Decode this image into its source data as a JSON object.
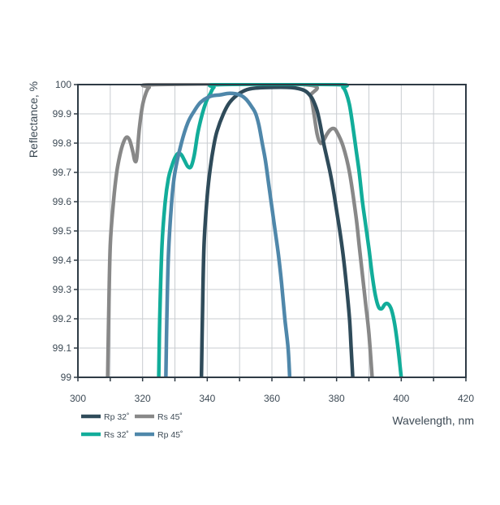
{
  "chart_data": {
    "type": "line",
    "xlabel": "Wavelength, nm",
    "ylabel": "Reflectance, %",
    "xlim": [
      300,
      420
    ],
    "ylim": [
      99,
      100
    ],
    "x_ticks": [
      "300",
      "320",
      "340",
      "360",
      "380",
      "400",
      "420"
    ],
    "y_ticks": [
      "99",
      "99.1",
      "99.2",
      "99.3",
      "99.4",
      "99.5",
      "99.6",
      "99.7",
      "99.8",
      "99.9",
      "100"
    ],
    "grid": true,
    "legend_position": "bottom-left",
    "series": [
      {
        "name": "Rs 45˚",
        "color": "#888888",
        "points": [
          [
            309.2,
            99
          ],
          [
            309.5,
            99.2
          ],
          [
            310,
            99.45
          ],
          [
            311,
            99.6
          ],
          [
            312,
            99.7
          ],
          [
            313,
            99.76
          ],
          [
            314,
            99.8
          ],
          [
            315,
            99.82
          ],
          [
            316,
            99.81
          ],
          [
            317,
            99.77
          ],
          [
            317.6,
            99.74
          ],
          [
            318.2,
            99.75
          ],
          [
            319,
            99.85
          ],
          [
            320,
            99.93
          ],
          [
            321,
            99.97
          ],
          [
            322,
            99.99
          ],
          [
            324,
            100
          ],
          [
            370,
            100
          ],
          [
            372,
            99.96
          ],
          [
            373,
            99.9
          ],
          [
            374,
            99.83
          ],
          [
            375,
            99.8
          ],
          [
            376,
            99.81
          ],
          [
            377,
            99.83
          ],
          [
            378,
            99.845
          ],
          [
            379,
            99.85
          ],
          [
            380,
            99.84
          ],
          [
            382,
            99.79
          ],
          [
            384,
            99.7
          ],
          [
            386,
            99.55
          ],
          [
            387,
            99.45
          ],
          [
            388,
            99.35
          ],
          [
            389,
            99.25
          ],
          [
            390,
            99.15
          ],
          [
            391,
            99
          ]
        ]
      },
      {
        "name": "Rp 32˚",
        "color": "#2f4b5a",
        "points": [
          [
            338.2,
            99
          ],
          [
            338.5,
            99.2
          ],
          [
            339,
            99.45
          ],
          [
            340,
            99.62
          ],
          [
            341,
            99.72
          ],
          [
            342,
            99.79
          ],
          [
            343,
            99.84
          ],
          [
            345,
            99.9
          ],
          [
            347,
            99.94
          ],
          [
            350,
            99.97
          ],
          [
            353,
            99.985
          ],
          [
            358,
            99.99
          ],
          [
            366,
            99.99
          ],
          [
            370,
            99.98
          ],
          [
            372,
            99.96
          ],
          [
            373,
            99.94
          ],
          [
            374,
            99.91
          ],
          [
            375,
            99.86
          ],
          [
            376,
            99.8
          ],
          [
            377,
            99.75
          ],
          [
            378,
            99.7
          ],
          [
            379,
            99.64
          ],
          [
            380,
            99.57
          ],
          [
            381,
            99.5
          ],
          [
            382,
            99.42
          ],
          [
            383,
            99.32
          ],
          [
            384,
            99.2
          ],
          [
            384.5,
            99.1
          ],
          [
            385,
            99
          ]
        ]
      },
      {
        "name": "Rs 32˚",
        "color": "#12ad9a",
        "points": [
          [
            325,
            99
          ],
          [
            325.3,
            99.2
          ],
          [
            326,
            99.45
          ],
          [
            327,
            99.6
          ],
          [
            328,
            99.68
          ],
          [
            329,
            99.72
          ],
          [
            330,
            99.75
          ],
          [
            331,
            99.765
          ],
          [
            332,
            99.76
          ],
          [
            333,
            99.74
          ],
          [
            334,
            99.72
          ],
          [
            335,
            99.72
          ],
          [
            336,
            99.76
          ],
          [
            337,
            99.83
          ],
          [
            338,
            99.88
          ],
          [
            339,
            99.92
          ],
          [
            340,
            99.95
          ],
          [
            341,
            99.97
          ],
          [
            342,
            99.99
          ],
          [
            344,
            100
          ],
          [
            380,
            100
          ],
          [
            382,
            99.99
          ],
          [
            383,
            99.97
          ],
          [
            384,
            99.93
          ],
          [
            385,
            99.86
          ],
          [
            386,
            99.78
          ],
          [
            387,
            99.7
          ],
          [
            388,
            99.6
          ],
          [
            389,
            99.52
          ],
          [
            390,
            99.44
          ],
          [
            391,
            99.35
          ],
          [
            392,
            99.28
          ],
          [
            393,
            99.24
          ],
          [
            394,
            99.235
          ],
          [
            395,
            99.25
          ],
          [
            396,
            99.25
          ],
          [
            397,
            99.23
          ],
          [
            398,
            99.18
          ],
          [
            399,
            99.1
          ],
          [
            400,
            99
          ]
        ]
      },
      {
        "name": "Rp 45˚",
        "color": "#4f87aa",
        "points": [
          [
            327.2,
            99
          ],
          [
            327.5,
            99.2
          ],
          [
            328,
            99.42
          ],
          [
            329,
            99.6
          ],
          [
            330,
            99.7
          ],
          [
            332,
            99.8
          ],
          [
            334,
            99.87
          ],
          [
            336,
            99.91
          ],
          [
            338,
            99.94
          ],
          [
            341,
            99.96
          ],
          [
            344,
            99.965
          ],
          [
            347,
            99.97
          ],
          [
            350,
            99.965
          ],
          [
            352,
            99.95
          ],
          [
            354,
            99.92
          ],
          [
            355,
            99.9
          ],
          [
            356,
            99.86
          ],
          [
            357,
            99.8
          ],
          [
            358,
            99.74
          ],
          [
            359,
            99.66
          ],
          [
            360,
            99.58
          ],
          [
            361,
            99.5
          ],
          [
            362,
            99.42
          ],
          [
            363,
            99.32
          ],
          [
            364,
            99.2
          ],
          [
            365,
            99.1
          ],
          [
            365.5,
            99
          ]
        ]
      }
    ]
  }
}
